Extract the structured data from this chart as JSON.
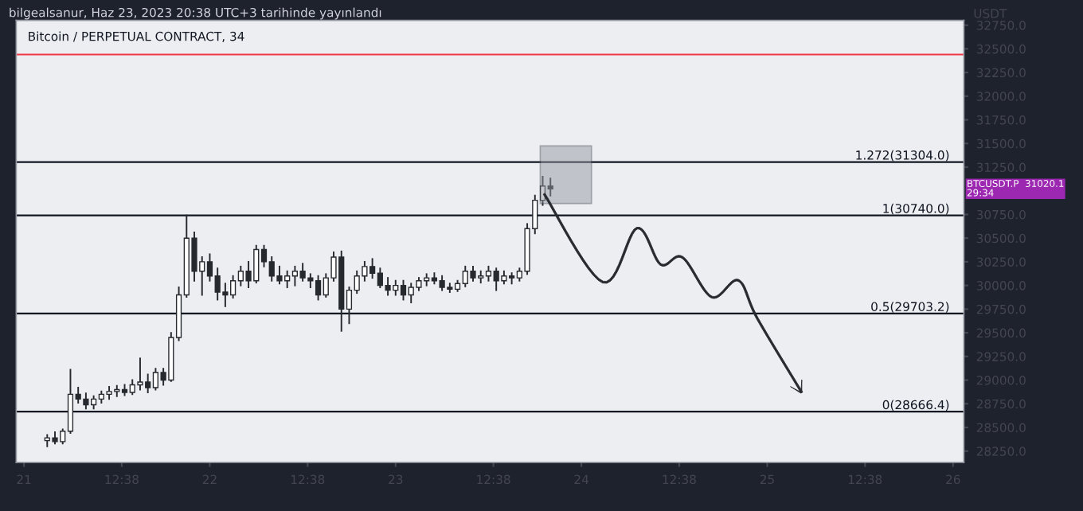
{
  "chart_data": {
    "type": "candlestick",
    "title": "Bitcoin / PERPETUAL CONTRACT, 34",
    "subtitle": "bilgealsanur, Haz 23, 2023 20:38 UTC+3 tarihinde yayınlandı",
    "ylabel": "USDT",
    "x": [
      "2023-06-21T03:00",
      "2023-06-21T04:00",
      "2023-06-21T05:00",
      "2023-06-21T06:00",
      "2023-06-21T07:00",
      "2023-06-21T08:00",
      "2023-06-21T09:00",
      "2023-06-21T10:00",
      "2023-06-21T11:00",
      "2023-06-21T12:00",
      "2023-06-21T13:00",
      "2023-06-21T14:00",
      "2023-06-21T15:00",
      "2023-06-21T16:00",
      "2023-06-21T17:00",
      "2023-06-21T18:00",
      "2023-06-21T19:00",
      "2023-06-21T20:00",
      "2023-06-21T21:00",
      "2023-06-21T22:00",
      "2023-06-21T23:00",
      "2023-06-22T00:00",
      "2023-06-22T01:00",
      "2023-06-22T02:00",
      "2023-06-22T03:00",
      "2023-06-22T04:00",
      "2023-06-22T05:00",
      "2023-06-22T06:00",
      "2023-06-22T07:00",
      "2023-06-22T08:00",
      "2023-06-22T09:00",
      "2023-06-22T10:00",
      "2023-06-22T11:00",
      "2023-06-22T12:00",
      "2023-06-22T13:00",
      "2023-06-22T14:00",
      "2023-06-22T15:00",
      "2023-06-22T16:00",
      "2023-06-22T17:00",
      "2023-06-22T18:00",
      "2023-06-22T19:00",
      "2023-06-22T20:00",
      "2023-06-22T21:00",
      "2023-06-22T22:00",
      "2023-06-22T23:00",
      "2023-06-23T00:00",
      "2023-06-23T01:00",
      "2023-06-23T02:00",
      "2023-06-23T03:00",
      "2023-06-23T04:00",
      "2023-06-23T05:00",
      "2023-06-23T06:00",
      "2023-06-23T07:00",
      "2023-06-23T08:00",
      "2023-06-23T09:00",
      "2023-06-23T10:00",
      "2023-06-23T11:00",
      "2023-06-23T12:00",
      "2023-06-23T13:00",
      "2023-06-23T14:00",
      "2023-06-23T15:00",
      "2023-06-23T16:00",
      "2023-06-23T17:00",
      "2023-06-23T18:00",
      "2023-06-23T19:00",
      "2023-06-23T20:00"
    ],
    "series": [
      {
        "color": "#26292e",
        "ohlc": [
          [
            28360,
            28420,
            28300,
            28390
          ],
          [
            28390,
            28450,
            28330,
            28350
          ],
          [
            28350,
            28480,
            28330,
            28460
          ],
          [
            28460,
            29110,
            28440,
            28850
          ],
          [
            28850,
            28920,
            28760,
            28800
          ],
          [
            28800,
            28860,
            28700,
            28740
          ],
          [
            28740,
            28830,
            28700,
            28800
          ],
          [
            28800,
            28880,
            28760,
            28850
          ],
          [
            28850,
            28930,
            28800,
            28880
          ],
          [
            28880,
            28940,
            28830,
            28900
          ],
          [
            28900,
            28950,
            28840,
            28870
          ],
          [
            28870,
            29000,
            28850,
            28950
          ],
          [
            28950,
            29230,
            28900,
            28980
          ],
          [
            28980,
            29060,
            28870,
            28920
          ],
          [
            28920,
            29120,
            28900,
            29080
          ],
          [
            29080,
            29120,
            28950,
            29000
          ],
          [
            29000,
            29500,
            28990,
            29450
          ],
          [
            29450,
            29980,
            29420,
            29900
          ],
          [
            29900,
            30740,
            29880,
            30500
          ],
          [
            30500,
            30560,
            30050,
            30150
          ],
          [
            30150,
            30300,
            29900,
            30250
          ],
          [
            30250,
            30330,
            30050,
            30100
          ],
          [
            30100,
            30180,
            29850,
            29930
          ],
          [
            29930,
            30020,
            29780,
            29900
          ],
          [
            29900,
            30100,
            29870,
            30050
          ],
          [
            30050,
            30200,
            30000,
            30150
          ],
          [
            30150,
            30250,
            29980,
            30050
          ],
          [
            30050,
            30420,
            30030,
            30380
          ],
          [
            30380,
            30420,
            30200,
            30250
          ],
          [
            30250,
            30300,
            30050,
            30100
          ],
          [
            30100,
            30200,
            30020,
            30050
          ],
          [
            30050,
            30150,
            29980,
            30100
          ],
          [
            30100,
            30200,
            30000,
            30150
          ],
          [
            30150,
            30230,
            30050,
            30080
          ],
          [
            30080,
            30120,
            29980,
            30050
          ],
          [
            30050,
            30100,
            29850,
            29900
          ],
          [
            29900,
            30120,
            29880,
            30080
          ],
          [
            30080,
            30350,
            30050,
            30300
          ],
          [
            30300,
            30360,
            29520,
            29750
          ],
          [
            29750,
            29980,
            29600,
            29950
          ],
          [
            29950,
            30150,
            29920,
            30100
          ],
          [
            30100,
            30250,
            30050,
            30200
          ],
          [
            30200,
            30280,
            30080,
            30130
          ],
          [
            30130,
            30180,
            29980,
            30000
          ],
          [
            30000,
            30080,
            29900,
            29950
          ],
          [
            29950,
            30050,
            29900,
            30000
          ],
          [
            30000,
            30050,
            29850,
            29900
          ],
          [
            29900,
            30020,
            29820,
            29980
          ],
          [
            29980,
            30080,
            29950,
            30050
          ],
          [
            30050,
            30120,
            30000,
            30080
          ],
          [
            30080,
            30130,
            30020,
            30050
          ],
          [
            30050,
            30100,
            29950,
            29980
          ],
          [
            29980,
            30020,
            29930,
            29960
          ],
          [
            29960,
            30050,
            29940,
            30020
          ],
          [
            30020,
            30200,
            29990,
            30150
          ],
          [
            30150,
            30200,
            30050,
            30080
          ],
          [
            30080,
            30150,
            30030,
            30100
          ],
          [
            30100,
            30200,
            30050,
            30150
          ],
          [
            30150,
            30180,
            29950,
            30050
          ],
          [
            30050,
            30150,
            30020,
            30100
          ],
          [
            30100,
            30130,
            30020,
            30080
          ],
          [
            30080,
            30180,
            30050,
            30150
          ],
          [
            30150,
            30650,
            30120,
            30600
          ],
          [
            30600,
            30950,
            30550,
            30900
          ],
          [
            30900,
            31150,
            30850,
            31050
          ],
          [
            31050,
            31130,
            30950,
            31020.1
          ]
        ]
      }
    ],
    "xlim": [
      "2023-06-20T23:00",
      "2023-06-26T01:24"
    ],
    "ylim": [
      28130,
      32800
    ],
    "xticks": [
      {
        "value": "2023-06-21",
        "label": "21"
      },
      {
        "value": "2023-06-21T12:38",
        "label": "12:38"
      },
      {
        "value": "2023-06-22",
        "label": "22"
      },
      {
        "value": "2023-06-22T12:38",
        "label": "12:38"
      },
      {
        "value": "2023-06-23",
        "label": "23"
      },
      {
        "value": "2023-06-23T12:38",
        "label": "12:38"
      },
      {
        "value": "2023-06-24",
        "label": "24"
      },
      {
        "value": "2023-06-24T12:38",
        "label": "12:38"
      },
      {
        "value": "2023-06-25",
        "label": "25"
      },
      {
        "value": "2023-06-25T12:38",
        "label": "12:38"
      },
      {
        "value": "2023-06-26",
        "label": "26"
      }
    ],
    "yticks": [
      {
        "value": 28250,
        "label": "28250.0"
      },
      {
        "value": 28500,
        "label": "28500.0"
      },
      {
        "value": 28750,
        "label": "28750.0"
      },
      {
        "value": 29000,
        "label": "29000.0"
      },
      {
        "value": 29250,
        "label": "29250.0"
      },
      {
        "value": 29500,
        "label": "29500.0"
      },
      {
        "value": 29750,
        "label": "29750.0"
      },
      {
        "value": 30000,
        "label": "30000.0"
      },
      {
        "value": 30250,
        "label": "30250.0"
      },
      {
        "value": 30500,
        "label": "30500.0"
      },
      {
        "value": 30750,
        "label": "30750.0"
      },
      {
        "value": 31250,
        "label": "31250.0"
      },
      {
        "value": 31500,
        "label": "31500.0"
      },
      {
        "value": 31750,
        "label": "31750.0"
      },
      {
        "value": 32000,
        "label": "32000.0"
      },
      {
        "value": 32250,
        "label": "32250.0"
      },
      {
        "value": 32500,
        "label": "32500.0"
      },
      {
        "value": 32750,
        "label": "32750.0"
      }
    ],
    "ref_lines": [
      {
        "axis": "y",
        "value": 32440,
        "label": null,
        "color": "#f23645"
      },
      {
        "axis": "y",
        "value": 31304,
        "label": "1.272(31304.0)",
        "color": "#131722"
      },
      {
        "axis": "y",
        "value": 30740,
        "label": "1(30740.0)",
        "color": "#131722"
      },
      {
        "axis": "y",
        "value": 29703.2,
        "label": "0.5(29703.2)",
        "color": "#131722"
      },
      {
        "axis": "y",
        "value": 28666.4,
        "label": "0(28666.4)",
        "color": "#131722"
      }
    ],
    "annotations": [
      "BTCUSDT.P  31020.1\n29:34"
    ],
    "grid": false
  }
}
